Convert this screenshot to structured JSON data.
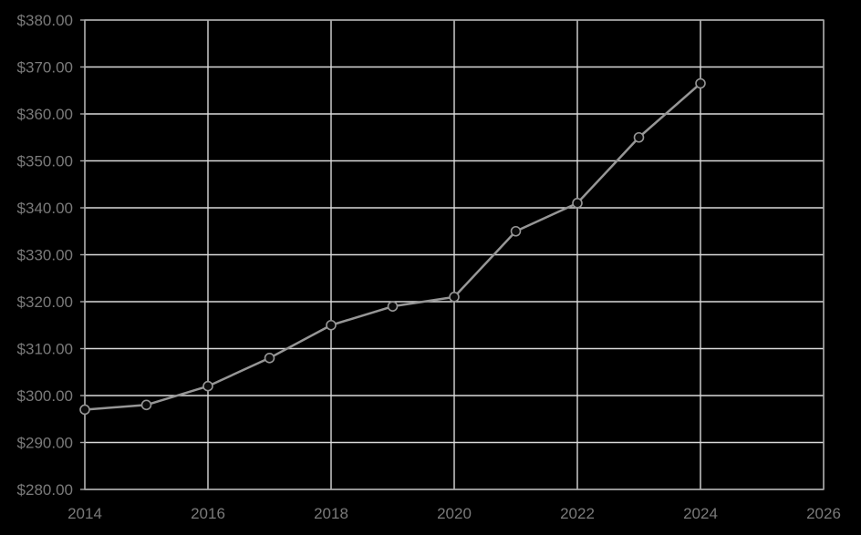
{
  "chart_data": {
    "type": "line",
    "title": "",
    "xlabel": "",
    "ylabel": "",
    "x": [
      2014,
      2015,
      2016,
      2017,
      2018,
      2019,
      2020,
      2021,
      2022,
      2023,
      2024
    ],
    "values": [
      297,
      298,
      302,
      308,
      315,
      319,
      321,
      335,
      341,
      355,
      366.5
    ],
    "x_axis": {
      "min": 2014,
      "max": 2026,
      "tick_step": 2,
      "tick_labels": [
        "2014",
        "2016",
        "2018",
        "2020",
        "2022",
        "2024",
        "2026"
      ]
    },
    "y_axis": {
      "min": 280,
      "max": 380,
      "tick_step": 10,
      "tick_labels_top_to_bottom": [
        "$380.00",
        "$370.00",
        "$360.00",
        "$350.00",
        "$340.00",
        "$330.00",
        "$320.00",
        "$310.00",
        "$300.00",
        "$290.00",
        "$280.00"
      ]
    },
    "grid": true,
    "legend_position": "none",
    "marker": "circle",
    "colors": {
      "background": "#000000",
      "gridline": "#d9d9d9",
      "plot_border": "#a6a6a6",
      "axis_tick": "#a6a6a6",
      "axis_text": "#7a7a7a",
      "series_line": "#969696",
      "marker_fill": "#0a0a0a",
      "marker_stroke": "#969696"
    }
  }
}
